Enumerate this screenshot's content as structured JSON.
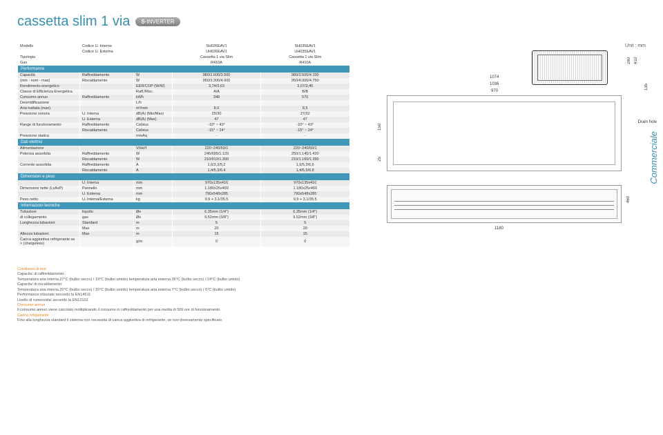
{
  "header": {
    "title": "cassetta slim 1 via",
    "badge": "INVERTER"
  },
  "unit_mm": "Unit : mm",
  "columns": {
    "c1": "",
    "c2": "",
    "c3": "",
    "c4": "SH026EAV1",
    "c5": "SH035EAV1"
  },
  "top_rows": [
    {
      "c1": "Modello",
      "c2": "Codice U. Interna",
      "c3": "",
      "c4": "SH026EAV1",
      "c5": "SH035EAV1"
    },
    {
      "c1": "",
      "c2": "Codice U. Esterna",
      "c3": "",
      "c4": "UH026EAV1",
      "c5": "UH035EAV1"
    },
    {
      "c1": "Tipologia",
      "c2": "",
      "c3": "",
      "c4": "Cassetta 1 via Slim",
      "c5": "Cassetta 1 via Slim"
    },
    {
      "c1": "Gas",
      "c2": "",
      "c3": "",
      "c4": "R410A",
      "c5": "R410A"
    }
  ],
  "sections": [
    {
      "title": "Performance",
      "rows": [
        {
          "c1": "Capacità",
          "c2": "Raffreddamento",
          "c3": "W",
          "c4": "980/2.600/3.500",
          "c5": "980/3.500/4.100"
        },
        {
          "c1": "(min - nom - max)",
          "c2": "Riscaldamento",
          "c3": "W",
          "c4": "950/3.300/4.600",
          "c5": "950/4.000/4.750"
        },
        {
          "c1": "Rendimento energetico",
          "c2": "",
          "c3": "EER/COP (W/W)",
          "c4": "3,74/3,63",
          "c5": "3,07/3,45"
        },
        {
          "c1": "Classe di Efficienza Energetica",
          "c2": "",
          "c3": "Raff./Risc.",
          "c4": "A/A",
          "c5": "B/B"
        },
        {
          "c1": "Consumo annuo",
          "c2": "Raffreddamento",
          "c3": "kWh",
          "c4": "348",
          "c5": "570"
        },
        {
          "c1": "Deumidificazione",
          "c2": "",
          "c3": "L/h",
          "c4": "",
          "c5": ""
        },
        {
          "c1": "Aria trattata (max)",
          "c2": "",
          "c3": "m³/min",
          "c4": "8,0",
          "c5": "8,5"
        },
        {
          "c1": "Pressione sonora",
          "c2": "U. Interna",
          "c3": "dB(A) (Min/Max)",
          "c4": "25/30",
          "c5": "27/32"
        },
        {
          "c1": "",
          "c2": "U. Esterna",
          "c3": "dB(A) (Max)",
          "c4": "47",
          "c5": "47"
        },
        {
          "c1": "Range di funzionamento",
          "c2": "Raffreddamento",
          "c3": "Celsius",
          "c4": "-10° ~ 43°",
          "c5": "-10° ~ 43°"
        },
        {
          "c1": "",
          "c2": "Riscaldamento",
          "c3": "Celsius",
          "c4": "-15° ~ 24°",
          "c5": "-15° ~ 24°"
        },
        {
          "c1": "Pressione statica",
          "c2": "",
          "c3": "mmAq",
          "c4": "-",
          "c5": "-"
        }
      ]
    },
    {
      "title": "Dati elettrici",
      "rows": [
        {
          "c1": "Alimentazione",
          "c2": "",
          "c3": "V/Hz/f",
          "c4": "220~240/50/1",
          "c5": "220~240/50/1"
        },
        {
          "c1": "Potenza assorbita",
          "c2": "Raffreddamento",
          "c3": "W",
          "c4": "245/695/1.120",
          "c5": "250/1.140/1.420"
        },
        {
          "c1": "",
          "c2": "Riscaldamento",
          "c3": "W",
          "c4": "210/910/1.300",
          "c5": "210/1.160/1.390"
        },
        {
          "c1": "Corrente assorbita",
          "c2": "Raffreddamento",
          "c3": "A",
          "c4": "1,6/3,3/5,2",
          "c5": "1,6/5,3/6,6"
        },
        {
          "c1": "",
          "c2": "Riscaldamento",
          "c3": "A",
          "c4": "1,4/5,3/6,4",
          "c5": "1,4/5,5/6,8"
        }
      ]
    },
    {
      "title": "Dimensioni e peso",
      "rows": [
        {
          "c1": "",
          "c2": "U. Interna",
          "c3": "mm",
          "c4": "970x135x410",
          "c5": "970x135x410"
        },
        {
          "c1": "Dimensioni nette (LxAxP)",
          "c2": "Pannello",
          "c3": "mm",
          "c4": "1.180x25x460",
          "c5": "1.180x25x460"
        },
        {
          "c1": "",
          "c2": "U. Esterna",
          "c3": "mm",
          "c4": "790x548x285",
          "c5": "790x548x285"
        },
        {
          "c1": "Peso netto",
          "c2": "U. Interna/Esterna",
          "c3": "kg",
          "c4": "9,9 + 3,1/35,5",
          "c5": "9,9 + 3,1/35,5"
        }
      ]
    },
    {
      "title": "Informazioni tecniche",
      "rows": [
        {
          "c1": "Tubazioni",
          "c2": "liquido",
          "c3": "Øe",
          "c4": "6.35mm (1/4\")",
          "c5": "6.35mm (1/4\")"
        },
        {
          "c1": "di collegamento",
          "c2": "gas",
          "c3": "Øe",
          "c4": "9,52mm (3/8\")",
          "c5": "9.52mm (3/8\")"
        },
        {
          "c1": "Lunghezza tubazioni",
          "c2": "Standard",
          "c3": "m",
          "c4": "5",
          "c5": "5"
        },
        {
          "c1": "",
          "c2": "Max",
          "c3": "m",
          "c4": "20",
          "c5": "20"
        },
        {
          "c1": "Altezza tubazioni",
          "c2": "Max",
          "c3": "m",
          "c4": "15",
          "c5": "15"
        },
        {
          "c1": "Carica aggiuntiva refrigerante se > (chargeless)",
          "c2": "",
          "c3": "g/m",
          "c4": "0",
          "c5": "0"
        }
      ]
    }
  ],
  "dims": {
    "outdoor_w": "280",
    "outdoor_h": "410",
    "indoor_w": "970",
    "indoor_total_w": "1036",
    "indoor_extra": "1074",
    "indoor_h": "135",
    "top_25": "25",
    "top_150": "150",
    "panel_w": "1180",
    "panel_h": "460"
  },
  "labels": {
    "drain": "Drain hole",
    "side_text": "Commerciale"
  },
  "footnotes": {
    "h1": "Condizioni di test",
    "l1": "Capacita' di raffreddamento:",
    "l2": "Temperatura aria interna 27°C (bulbo secco) / 19°C (bulbo umido) temperatura aria esterna 35°C (bulbo secco) / 24°C (bulbo umido)",
    "l3": "Capacita' di riscaldamento:",
    "l4": "Temperatura aria interna 20°C (bulbo secco) / 15°C (bulbo umido) temperatura aria esterna 7°C (bulbo secco) / 6°C (bulbo umido)",
    "l5": "Performance misurate secondo la EN14511",
    "l6": "Livello di rumorosita' secondo la EN12102",
    "l7h": "Consumo annuo",
    "l7": "Il consumo annuo viene calcolato moltiplicando il consumo in raffreddamento per una media di 500 ore di funzionamento",
    "l8h": "Carica refrigerante",
    "l8": "Fino alla lunghezza standard il sistema non necessita di carica aggiuntiva di refrigerante, se non diversamente specificato"
  }
}
